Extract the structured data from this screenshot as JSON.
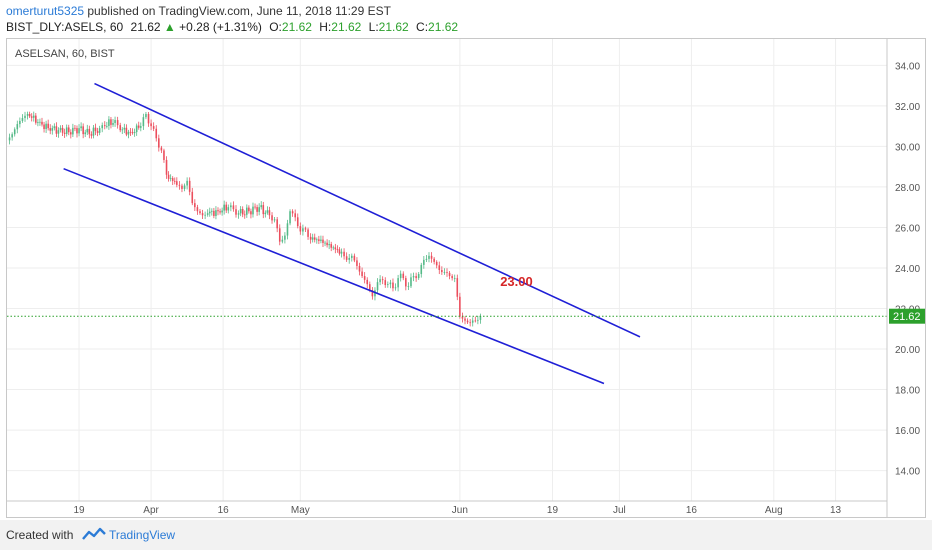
{
  "header": {
    "publisher": "omerturut5325",
    "published_text": " published on TradingView.com, June 11, 2018 11:29 EST",
    "symbol_line": "BIST_DLY:ASELS, 60",
    "last": "21.62",
    "change_arrow": "▲",
    "change": "+0.28 (+1.31%)",
    "o_label": "O:",
    "o_value": "21.62",
    "h_label": "H:",
    "h_value": "21.62",
    "l_label": "L:",
    "l_value": "21.62",
    "c_label": "C:",
    "c_value": "21.62"
  },
  "footer": {
    "created_with": "Created with",
    "brand": "TradingView"
  },
  "colors": {
    "candle_up": "#53b987",
    "candle_down": "#eb4d5c",
    "channel": "#1f1fd6",
    "annotation": "#d62728",
    "price_line": "#2ca02c",
    "axis_text": "#555555",
    "grid": "#eeeeee"
  },
  "chart_data": {
    "type": "candlestick",
    "title": "ASELSAN, 60, BIST",
    "x_tick_labels": [
      "19",
      "Apr",
      "16",
      "May",
      "Jun",
      "19",
      "Jul",
      "16",
      "Aug",
      "13"
    ],
    "x_tick_dates": [
      "2018-03-19",
      "2018-04-02",
      "2018-04-16",
      "2018-05-01",
      "2018-06-01",
      "2018-06-19",
      "2018-07-02",
      "2018-07-16",
      "2018-08-01",
      "2018-08-13"
    ],
    "y_ticks": [
      "14.00",
      "16.00",
      "18.00",
      "20.00",
      "22.00",
      "24.00",
      "26.00",
      "28.00",
      "30.00",
      "32.00",
      "34.00"
    ],
    "y_range": [
      12.5,
      35.3
    ],
    "x_range": [
      "2018-03-05",
      "2018-08-23"
    ],
    "last_price": "21.62",
    "annotation": "23.00",
    "annotation_date": "2018-06-12",
    "annotation_price": 23.1,
    "channel_lines": [
      {
        "x": [
          "2018-03-22",
          "2018-07-06"
        ],
        "y": [
          33.1,
          20.6
        ]
      },
      {
        "x": [
          "2018-03-16",
          "2018-06-29"
        ],
        "y": [
          28.9,
          18.3
        ]
      }
    ],
    "price_series": [
      [
        "2018-03-05",
        30.3
      ],
      [
        "2018-03-06",
        30.6
      ],
      [
        "2018-03-07",
        31.1
      ],
      [
        "2018-03-08",
        31.4
      ],
      [
        "2018-03-09",
        31.6
      ],
      [
        "2018-03-11",
        31.2
      ],
      [
        "2018-03-13",
        30.9
      ],
      [
        "2018-03-15",
        30.8
      ],
      [
        "2018-03-17",
        30.7
      ],
      [
        "2018-03-19",
        30.9
      ],
      [
        "2018-03-21",
        30.6
      ],
      [
        "2018-03-23",
        30.9
      ],
      [
        "2018-03-24",
        31.0
      ],
      [
        "2018-03-26",
        31.3
      ],
      [
        "2018-03-27",
        30.8
      ],
      [
        "2018-03-29",
        30.7
      ],
      [
        "2018-03-31",
        31.0
      ],
      [
        "2018-04-01",
        31.6
      ],
      [
        "2018-04-02",
        31.0
      ],
      [
        "2018-04-03",
        30.4
      ],
      [
        "2018-04-04",
        29.8
      ],
      [
        "2018-04-05",
        28.6
      ],
      [
        "2018-04-07",
        28.1
      ],
      [
        "2018-04-08",
        27.9
      ],
      [
        "2018-04-09",
        28.3
      ],
      [
        "2018-04-10",
        27.2
      ],
      [
        "2018-04-11",
        26.8
      ],
      [
        "2018-04-12",
        26.6
      ],
      [
        "2018-04-13",
        26.7
      ],
      [
        "2018-04-15",
        26.8
      ],
      [
        "2018-04-17",
        27.0
      ],
      [
        "2018-04-18",
        26.9
      ],
      [
        "2018-04-19",
        26.7
      ],
      [
        "2018-04-21",
        26.8
      ],
      [
        "2018-04-23",
        27.0
      ],
      [
        "2018-04-25",
        26.6
      ],
      [
        "2018-04-26",
        26.4
      ],
      [
        "2018-04-27",
        25.3
      ],
      [
        "2018-04-28",
        25.6
      ],
      [
        "2018-04-29",
        26.8
      ],
      [
        "2018-04-30",
        26.5
      ],
      [
        "2018-05-01",
        25.8
      ],
      [
        "2018-05-02",
        25.9
      ],
      [
        "2018-05-03",
        25.4
      ],
      [
        "2018-05-05",
        25.4
      ],
      [
        "2018-05-07",
        25.0
      ],
      [
        "2018-05-09",
        24.8
      ],
      [
        "2018-05-10",
        24.4
      ],
      [
        "2018-05-11",
        24.6
      ],
      [
        "2018-05-12",
        24.1
      ],
      [
        "2018-05-13",
        23.6
      ],
      [
        "2018-05-14",
        23.2
      ],
      [
        "2018-05-15",
        22.6
      ],
      [
        "2018-05-16",
        23.3
      ],
      [
        "2018-05-17",
        23.4
      ],
      [
        "2018-05-18",
        23.2
      ],
      [
        "2018-05-19",
        23.0
      ],
      [
        "2018-05-20",
        23.5
      ],
      [
        "2018-05-21",
        23.5
      ],
      [
        "2018-05-22",
        23.1
      ],
      [
        "2018-05-23",
        23.6
      ],
      [
        "2018-05-24",
        23.7
      ],
      [
        "2018-05-25",
        24.4
      ],
      [
        "2018-05-26",
        24.6
      ],
      [
        "2018-05-27",
        24.3
      ],
      [
        "2018-05-28",
        23.9
      ],
      [
        "2018-05-29",
        23.8
      ],
      [
        "2018-05-30",
        23.6
      ],
      [
        "2018-05-31",
        23.5
      ],
      [
        "2018-06-01",
        21.6
      ],
      [
        "2018-06-02",
        21.4
      ],
      [
        "2018-06-03",
        21.3
      ],
      [
        "2018-06-04",
        21.4
      ],
      [
        "2018-06-05",
        21.62
      ]
    ]
  }
}
